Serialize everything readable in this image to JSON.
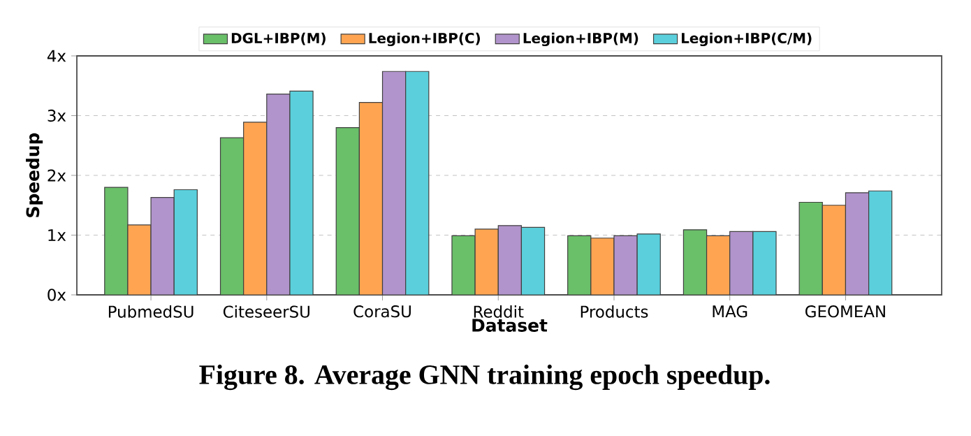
{
  "chart_data": {
    "type": "bar",
    "title": "Figure 8. Average GNN training epoch speedup.",
    "xlabel": "Dataset",
    "ylabel": "Speedup",
    "categories": [
      "PubmedSU",
      "CiteseerSU",
      "CoraSU",
      "Reddit",
      "Products",
      "MAG",
      "GEOMEAN"
    ],
    "series": [
      {
        "name": "DGL+IBP(M)",
        "color": "#6abf69",
        "values": [
          1.8,
          2.63,
          2.8,
          0.99,
          0.99,
          1.09,
          1.55
        ]
      },
      {
        "name": "Legion+IBP(C)",
        "color": "#ffa552",
        "values": [
          1.17,
          2.89,
          3.22,
          1.1,
          0.95,
          0.99,
          1.5
        ]
      },
      {
        "name": "Legion+IBP(M)",
        "color": "#b294cc",
        "values": [
          1.63,
          3.36,
          3.74,
          1.16,
          0.99,
          1.06,
          1.71
        ]
      },
      {
        "name": "Legion+IBP(C/M)",
        "color": "#5bd0dc",
        "values": [
          1.76,
          3.41,
          3.74,
          1.13,
          1.02,
          1.06,
          1.74
        ]
      }
    ],
    "ylim": [
      0,
      4
    ],
    "yticks": [
      {
        "value": 0,
        "label": "0x"
      },
      {
        "value": 1,
        "label": "1x"
      },
      {
        "value": 2,
        "label": "2x"
      },
      {
        "value": 3,
        "label": "3x"
      },
      {
        "value": 4,
        "label": "4x"
      }
    ],
    "grid": "y",
    "legend": "top"
  }
}
